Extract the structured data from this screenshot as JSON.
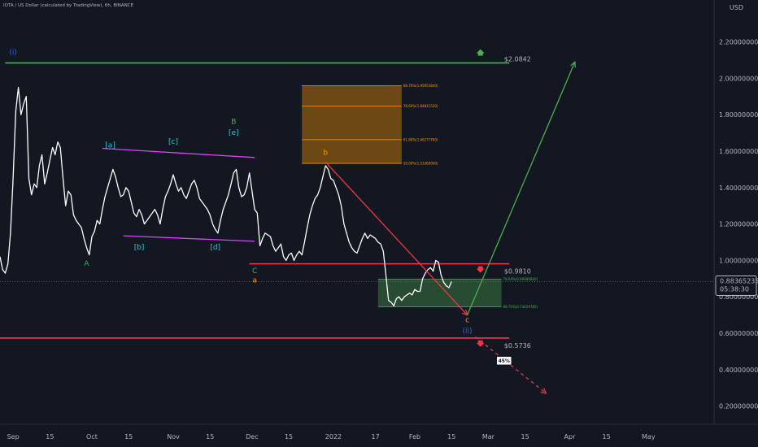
{
  "header": {
    "symbol_title": "IOTA / US Dollar (calculated by TradingView), 6h, BINANCE",
    "currency": "USD"
  },
  "price_tag": {
    "value": "0.88365235",
    "countdown": "05:38:30"
  },
  "chart_data": {
    "type": "line",
    "title": "IOTA / US Dollar (calculated by TradingView), 6h, BINANCE",
    "xlabel": "",
    "ylabel": "USD",
    "ylim": [
      0.1,
      2.43
    ],
    "xlim": [
      "2021-08-27",
      "2022-05-26"
    ],
    "grid": false,
    "y_ticks": [
      "2.20000000",
      "2.00000000",
      "1.80000000",
      "1.60000000",
      "1.40000000",
      "1.20000000",
      "1.00000000",
      "0.80000000",
      "0.60000000",
      "0.40000000",
      "0.20000000"
    ],
    "y_tick_values": [
      2.2,
      2.0,
      1.8,
      1.6,
      1.4,
      1.2,
      1.0,
      0.8,
      0.6,
      0.4,
      0.2
    ],
    "x_ticks": [
      {
        "label": "Sep",
        "date": "2021-09-01"
      },
      {
        "label": "15",
        "date": "2021-09-15"
      },
      {
        "label": "Oct",
        "date": "2021-10-01"
      },
      {
        "label": "15",
        "date": "2021-10-15"
      },
      {
        "label": "Nov",
        "date": "2021-11-01"
      },
      {
        "label": "15",
        "date": "2021-11-15"
      },
      {
        "label": "Dec",
        "date": "2021-12-01"
      },
      {
        "label": "15",
        "date": "2021-12-15"
      },
      {
        "label": "2022",
        "date": "2022-01-01"
      },
      {
        "label": "17",
        "date": "2022-01-17"
      },
      {
        "label": "Feb",
        "date": "2022-02-01"
      },
      {
        "label": "15",
        "date": "2022-02-15"
      },
      {
        "label": "Mar",
        "date": "2022-03-01"
      },
      {
        "label": "15",
        "date": "2022-03-15"
      },
      {
        "label": "Apr",
        "date": "2022-04-01"
      },
      {
        "label": "15",
        "date": "2022-04-15"
      },
      {
        "label": "May",
        "date": "2022-05-01"
      }
    ],
    "series": [
      {
        "color": "#ffffff",
        "points": [
          [
            "2021-08-27",
            1.02
          ],
          [
            "2021-08-28",
            0.95
          ],
          [
            "2021-08-29",
            0.93
          ],
          [
            "2021-08-30",
            0.98
          ],
          [
            "2021-08-31",
            1.15
          ],
          [
            "2021-09-01",
            1.45
          ],
          [
            "2021-09-02",
            1.82
          ],
          [
            "2021-09-03",
            1.95
          ],
          [
            "2021-09-04",
            1.8
          ],
          [
            "2021-09-05",
            1.86
          ],
          [
            "2021-09-06",
            1.9
          ],
          [
            "2021-09-07",
            1.45
          ],
          [
            "2021-09-08",
            1.36
          ],
          [
            "2021-09-09",
            1.42
          ],
          [
            "2021-09-10",
            1.4
          ],
          [
            "2021-09-11",
            1.52
          ],
          [
            "2021-09-12",
            1.58
          ],
          [
            "2021-09-13",
            1.42
          ],
          [
            "2021-09-14",
            1.48
          ],
          [
            "2021-09-15",
            1.55
          ],
          [
            "2021-09-16",
            1.62
          ],
          [
            "2021-09-17",
            1.58
          ],
          [
            "2021-09-18",
            1.65
          ],
          [
            "2021-09-19",
            1.62
          ],
          [
            "2021-09-20",
            1.45
          ],
          [
            "2021-09-21",
            1.3
          ],
          [
            "2021-09-22",
            1.38
          ],
          [
            "2021-09-23",
            1.36
          ],
          [
            "2021-09-24",
            1.25
          ],
          [
            "2021-09-25",
            1.22
          ],
          [
            "2021-09-26",
            1.2
          ],
          [
            "2021-09-27",
            1.18
          ],
          [
            "2021-09-28",
            1.12
          ],
          [
            "2021-09-29",
            1.07
          ],
          [
            "2021-09-30",
            1.03
          ],
          [
            "2021-10-01",
            1.13
          ],
          [
            "2021-10-02",
            1.16
          ],
          [
            "2021-10-03",
            1.22
          ],
          [
            "2021-10-04",
            1.2
          ],
          [
            "2021-10-05",
            1.28
          ],
          [
            "2021-10-06",
            1.35
          ],
          [
            "2021-10-07",
            1.4
          ],
          [
            "2021-10-08",
            1.45
          ],
          [
            "2021-10-09",
            1.5
          ],
          [
            "2021-10-10",
            1.46
          ],
          [
            "2021-10-11",
            1.4
          ],
          [
            "2021-10-12",
            1.35
          ],
          [
            "2021-10-13",
            1.36
          ],
          [
            "2021-10-14",
            1.4
          ],
          [
            "2021-10-15",
            1.38
          ],
          [
            "2021-10-16",
            1.32
          ],
          [
            "2021-10-17",
            1.26
          ],
          [
            "2021-10-18",
            1.24
          ],
          [
            "2021-10-19",
            1.28
          ],
          [
            "2021-10-20",
            1.25
          ],
          [
            "2021-10-21",
            1.2
          ],
          [
            "2021-10-22",
            1.22
          ],
          [
            "2021-10-23",
            1.24
          ],
          [
            "2021-10-24",
            1.26
          ],
          [
            "2021-10-25",
            1.28
          ],
          [
            "2021-10-26",
            1.25
          ],
          [
            "2021-10-27",
            1.2
          ],
          [
            "2021-10-28",
            1.28
          ],
          [
            "2021-10-29",
            1.35
          ],
          [
            "2021-10-30",
            1.38
          ],
          [
            "2021-10-31",
            1.42
          ],
          [
            "2021-11-01",
            1.47
          ],
          [
            "2021-11-02",
            1.42
          ],
          [
            "2021-11-03",
            1.38
          ],
          [
            "2021-11-04",
            1.4
          ],
          [
            "2021-11-05",
            1.36
          ],
          [
            "2021-11-06",
            1.34
          ],
          [
            "2021-11-07",
            1.38
          ],
          [
            "2021-11-08",
            1.42
          ],
          [
            "2021-11-09",
            1.44
          ],
          [
            "2021-11-10",
            1.4
          ],
          [
            "2021-11-11",
            1.34
          ],
          [
            "2021-11-12",
            1.32
          ],
          [
            "2021-11-13",
            1.3
          ],
          [
            "2021-11-14",
            1.28
          ],
          [
            "2021-11-15",
            1.25
          ],
          [
            "2021-11-16",
            1.2
          ],
          [
            "2021-11-17",
            1.17
          ],
          [
            "2021-11-18",
            1.15
          ],
          [
            "2021-11-19",
            1.22
          ],
          [
            "2021-11-20",
            1.28
          ],
          [
            "2021-11-21",
            1.32
          ],
          [
            "2021-11-22",
            1.36
          ],
          [
            "2021-11-23",
            1.42
          ],
          [
            "2021-11-24",
            1.48
          ],
          [
            "2021-11-25",
            1.5
          ],
          [
            "2021-11-26",
            1.4
          ],
          [
            "2021-11-27",
            1.35
          ],
          [
            "2021-11-28",
            1.36
          ],
          [
            "2021-11-29",
            1.4
          ],
          [
            "2021-11-30",
            1.48
          ],
          [
            "2021-12-01",
            1.38
          ],
          [
            "2021-12-02",
            1.28
          ],
          [
            "2021-12-03",
            1.26
          ],
          [
            "2021-12-04",
            1.08
          ],
          [
            "2021-12-05",
            1.12
          ],
          [
            "2021-12-06",
            1.15
          ],
          [
            "2021-12-07",
            1.14
          ],
          [
            "2021-12-08",
            1.13
          ],
          [
            "2021-12-09",
            1.08
          ],
          [
            "2021-12-10",
            1.05
          ],
          [
            "2021-12-11",
            1.07
          ],
          [
            "2021-12-12",
            1.09
          ],
          [
            "2021-12-13",
            1.02
          ],
          [
            "2021-12-14",
            1.0
          ],
          [
            "2021-12-15",
            1.03
          ],
          [
            "2021-12-16",
            1.04
          ],
          [
            "2021-12-17",
            1.0
          ],
          [
            "2021-12-18",
            1.03
          ],
          [
            "2021-12-19",
            1.05
          ],
          [
            "2021-12-20",
            1.03
          ],
          [
            "2021-12-21",
            1.1
          ],
          [
            "2021-12-22",
            1.18
          ],
          [
            "2021-12-23",
            1.25
          ],
          [
            "2021-12-24",
            1.3
          ],
          [
            "2021-12-25",
            1.34
          ],
          [
            "2021-12-26",
            1.36
          ],
          [
            "2021-12-27",
            1.4
          ],
          [
            "2021-12-28",
            1.46
          ],
          [
            "2021-12-29",
            1.52
          ],
          [
            "2021-12-30",
            1.5
          ],
          [
            "2021-12-31",
            1.45
          ],
          [
            "2022-01-01",
            1.44
          ],
          [
            "2022-01-02",
            1.4
          ],
          [
            "2022-01-03",
            1.36
          ],
          [
            "2022-01-04",
            1.3
          ],
          [
            "2022-01-05",
            1.2
          ],
          [
            "2022-01-06",
            1.15
          ],
          [
            "2022-01-07",
            1.1
          ],
          [
            "2022-01-08",
            1.07
          ],
          [
            "2022-01-09",
            1.05
          ],
          [
            "2022-01-10",
            1.04
          ],
          [
            "2022-01-11",
            1.08
          ],
          [
            "2022-01-12",
            1.12
          ],
          [
            "2022-01-13",
            1.15
          ],
          [
            "2022-01-14",
            1.12
          ],
          [
            "2022-01-15",
            1.14
          ],
          [
            "2022-01-16",
            1.13
          ],
          [
            "2022-01-17",
            1.12
          ],
          [
            "2022-01-18",
            1.1
          ],
          [
            "2022-01-19",
            1.09
          ],
          [
            "2022-01-20",
            1.05
          ],
          [
            "2022-01-21",
            0.92
          ],
          [
            "2022-01-22",
            0.78
          ],
          [
            "2022-01-23",
            0.77
          ],
          [
            "2022-01-24",
            0.75
          ],
          [
            "2022-01-25",
            0.79
          ],
          [
            "2022-01-26",
            0.8
          ],
          [
            "2022-01-27",
            0.78
          ],
          [
            "2022-01-28",
            0.8
          ],
          [
            "2022-01-29",
            0.81
          ],
          [
            "2022-01-30",
            0.82
          ],
          [
            "2022-01-31",
            0.81
          ],
          [
            "2022-02-01",
            0.84
          ],
          [
            "2022-02-02",
            0.83
          ],
          [
            "2022-02-03",
            0.83
          ],
          [
            "2022-02-04",
            0.9
          ],
          [
            "2022-02-05",
            0.93
          ],
          [
            "2022-02-06",
            0.95
          ],
          [
            "2022-02-07",
            0.96
          ],
          [
            "2022-02-08",
            0.94
          ],
          [
            "2022-02-09",
            1.0
          ],
          [
            "2022-02-10",
            0.99
          ],
          [
            "2022-02-11",
            0.92
          ],
          [
            "2022-02-12",
            0.88
          ],
          [
            "2022-02-13",
            0.86
          ],
          [
            "2022-02-14",
            0.85
          ],
          [
            "2022-02-15",
            0.8837
          ]
        ]
      }
    ],
    "horizontal_lines": [
      {
        "price": 2.0842,
        "label": "$2.0842",
        "color": "#4caf50",
        "arrow": "up"
      },
      {
        "price": 0.981,
        "label": "$0.9810",
        "color": "#f23645",
        "arrow": "down"
      },
      {
        "price": 0.5736,
        "label": "$0.5736",
        "color": "#f23645",
        "arrow": "down"
      }
    ],
    "fib_zones": [
      {
        "color": "#ff9800",
        "levels": [
          {
            "label": "88.70%(1.95953840)",
            "price": 1.9595
          },
          {
            "label": "78.60%(1.84811520)",
            "price": 1.8481
          },
          {
            "label": "61.80%(1.66277760)",
            "price": 1.6628
          },
          {
            "label": "50.00%(1.53260000)",
            "price": 1.5326
          }
        ]
      },
      {
        "color": "#4caf50",
        "levels": [
          {
            "label": "78.60%(0.89686840)",
            "price": 0.8969
          },
          {
            "label": "88.70%(0.74429780)",
            "price": 0.7443
          }
        ]
      }
    ],
    "wave_labels": [
      {
        "text": "(i)",
        "date": "2021-09-01",
        "price": 2.13,
        "color": "#2962ff"
      },
      {
        "text": "A",
        "date": "2021-09-29",
        "price": 0.97,
        "color": "#4caf50"
      },
      {
        "text": "[a]",
        "date": "2021-10-08",
        "price": 1.62,
        "color": "#26c6da"
      },
      {
        "text": "[b]",
        "date": "2021-10-19",
        "price": 1.06,
        "color": "#26c6da"
      },
      {
        "text": "[c]",
        "date": "2021-11-01",
        "price": 1.64,
        "color": "#26c6da"
      },
      {
        "text": "[d]",
        "date": "2021-11-17",
        "price": 1.06,
        "color": "#26c6da"
      },
      {
        "text": "[e]",
        "date": "2021-11-24",
        "price": 1.69,
        "color": "#26c6da"
      },
      {
        "text": "B",
        "date": "2021-11-24",
        "price": 1.75,
        "color": "#4caf50"
      },
      {
        "text": "C",
        "date": "2021-12-02",
        "price": 0.93,
        "color": "#4caf50"
      },
      {
        "text": "a",
        "date": "2021-12-02",
        "price": 0.88,
        "color": "#ff9800"
      },
      {
        "text": "b",
        "date": "2021-12-29",
        "price": 1.58,
        "color": "#ff9800"
      },
      {
        "text": "c",
        "date": "2022-02-21",
        "price": 0.66,
        "color": "#ff9800"
      },
      {
        "text": "(ii)",
        "date": "2022-02-21",
        "price": 0.6,
        "color": "#2962ff"
      }
    ],
    "trendlines": [
      {
        "color": "#e040fb",
        "from": [
          "2021-10-05",
          1.615
        ],
        "to": [
          "2021-12-02",
          1.565
        ]
      },
      {
        "color": "#e040fb",
        "from": [
          "2021-10-13",
          1.135
        ],
        "to": [
          "2021-12-02",
          1.105
        ]
      },
      {
        "color": "#f23645",
        "from": [
          "2021-12-29",
          1.54
        ],
        "to": [
          "2022-02-21",
          0.7
        ]
      },
      {
        "color": "#4caf50",
        "from": [
          "2022-02-21",
          0.7
        ],
        "to": [
          "2022-04-03",
          2.09
        ]
      },
      {
        "color": "#f23645",
        "dashed": true,
        "from": [
          "2022-02-24",
          0.58
        ],
        "to": [
          "2022-03-23",
          0.27
        ]
      }
    ],
    "annotations": [
      {
        "text": "45%",
        "date": "2022-03-07",
        "price": 0.44
      }
    ]
  }
}
